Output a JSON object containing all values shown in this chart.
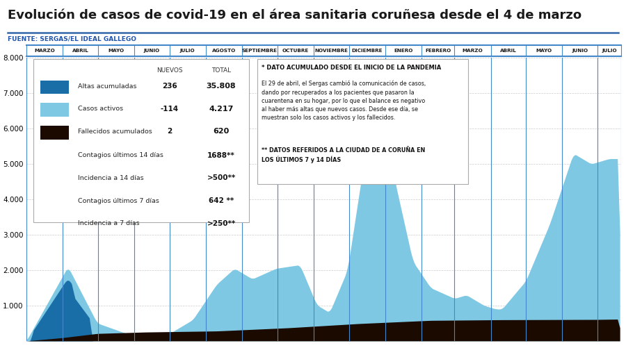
{
  "title": "Evolución de casos de covid-19 en el área sanitaria coruñesa desde el 4 de marzo",
  "source": "FUENTE: SERGAS/EL IDEAL GALLEGO",
  "title_color": "#1a1a1a",
  "title_fontsize": 13,
  "background_color": "#ffffff",
  "color_altas": "#1a6ea8",
  "color_activos": "#7ec8e3",
  "color_fallecidos": "#1a0a00",
  "ylim": [
    0,
    8000
  ],
  "yticks": [
    1000,
    2000,
    3000,
    4000,
    5000,
    6000,
    7000,
    8000
  ],
  "month_labels": [
    "MARZO",
    "ABRIL",
    "MAYO",
    "JUNIO",
    "JULIO",
    "AGOSTO",
    "SEPTIEMBRE",
    "OCTUBRE",
    "NOVIEMBRE",
    "DICIEMBRE",
    "ENERO",
    "FEBRERO",
    "MARZO",
    "ABRIL",
    "MAYO",
    "JUNIO",
    "JULIO"
  ],
  "month_days": [
    31,
    30,
    31,
    30,
    31,
    31,
    30,
    31,
    30,
    31,
    31,
    28,
    31,
    30,
    31,
    30,
    20
  ],
  "legend_items": [
    {
      "label": "Altas acumuladas",
      "color": "#1a6ea8",
      "nuevos": "236",
      "total": "35.808"
    },
    {
      "label": "Casos activos",
      "color": "#7ec8e3",
      "nuevos": "-114",
      "total": "4.217"
    },
    {
      "label": "Fallecidos acumulados",
      "color": "#1a0a00",
      "nuevos": "2",
      "total": "620"
    }
  ],
  "legend_extra": [
    {
      "label": "Contagios últimos 14 días",
      "value": "1688**"
    },
    {
      "label": "Incidencia a 14 días",
      "value": ">500**"
    },
    {
      "label": "Contagios últimos 7 días",
      "value": "642 **"
    },
    {
      "label": "Incidencia a 7 días",
      "value": ">250**"
    }
  ],
  "annotation1_title": "* DATO ACUMULADO DESDE EL INICIO DE LA PANDEMIA",
  "annotation1_body": "El 29 de abril, el Sergas cambió la comunicación de casos,\ndando por recuperados a los pacientes que pasaron la\ncuarentena en su hogar, por lo que el balance es negativo\nal haber más altas que nuevos casos. Desde ese día, se\nmuestran solo los casos activos y los fallecidos.",
  "annotation2": "** DATOS REFERIDOS A LA CIUDAD DE A CORUÑA EN\nLOS ÚLTIMOS 7 y 14 DÍAS",
  "n_days": 500
}
